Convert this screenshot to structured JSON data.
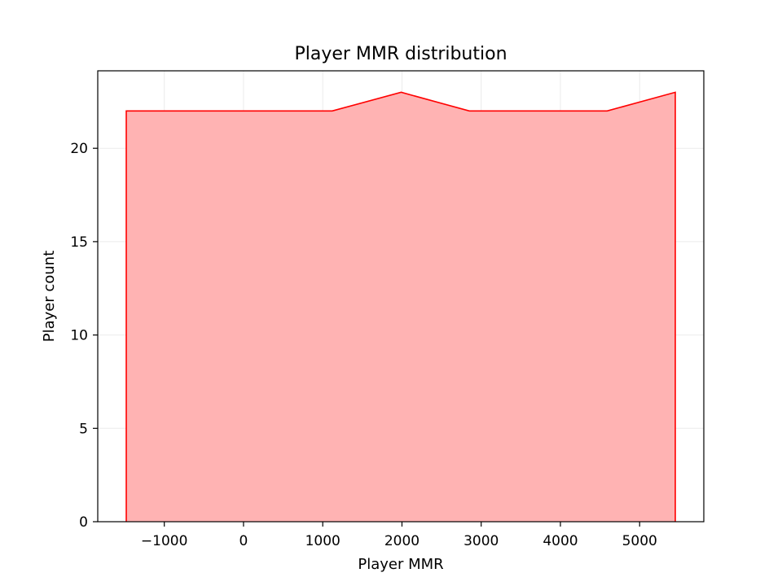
{
  "chart_data": {
    "type": "area",
    "title": "Player MMR distribution",
    "xlabel": "Player MMR",
    "ylabel": "Player count",
    "x": [
      -1480,
      1120,
      1990,
      2850,
      4590,
      5450
    ],
    "y": [
      22,
      22,
      23,
      22,
      22,
      23
    ],
    "xlim": [
      -1840,
      5810
    ],
    "ylim": [
      0,
      24.15
    ],
    "xticks": [
      -1000,
      0,
      1000,
      2000,
      3000,
      4000,
      5000
    ],
    "xtick_labels": [
      "−1000",
      "0",
      "1000",
      "2000",
      "3000",
      "4000",
      "5000"
    ],
    "yticks": [
      0,
      5,
      10,
      15,
      20
    ],
    "ytick_labels": [
      "0",
      "5",
      "10",
      "15",
      "20"
    ],
    "grid": true,
    "legend": "none",
    "colors": {
      "line": "#ff0000",
      "fill": "#ffb3b3",
      "grid": "#ebebeb",
      "axes": "#000000"
    }
  }
}
